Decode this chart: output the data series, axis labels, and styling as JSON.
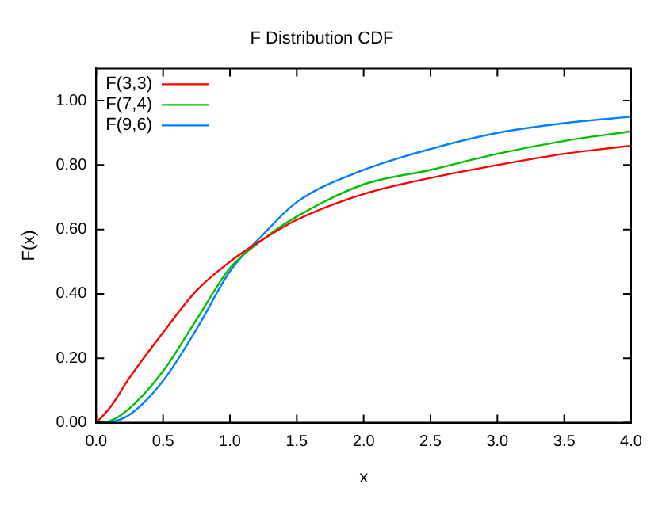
{
  "chart_data": {
    "type": "line",
    "title": "F Distribution CDF",
    "xlabel": "x",
    "ylabel": "F(x)",
    "x": [
      0,
      0.1,
      0.25,
      0.5,
      0.75,
      1,
      1.25,
      1.5,
      2,
      2.5,
      3,
      3.5,
      4
    ],
    "series": [
      {
        "name": "F(3,3)",
        "color": "#ff0000",
        "values": [
          0,
          0.045,
          0.14,
          0.28,
          0.41,
          0.5,
          0.57,
          0.63,
          0.71,
          0.76,
          0.8,
          0.835,
          0.86
        ]
      },
      {
        "name": "F(7,4)",
        "color": "#00c000",
        "values": [
          0,
          0.005,
          0.045,
          0.16,
          0.32,
          0.48,
          0.57,
          0.64,
          0.74,
          0.785,
          0.835,
          0.875,
          0.905
        ]
      },
      {
        "name": "F(9,6)",
        "color": "#0080ff",
        "values": [
          0,
          0.002,
          0.025,
          0.13,
          0.29,
          0.47,
          0.585,
          0.685,
          0.785,
          0.85,
          0.9,
          0.93,
          0.95
        ]
      }
    ],
    "xlim": [
      0,
      4
    ],
    "ylim": [
      0,
      1.1
    ],
    "xticks": [
      {
        "value": 0,
        "label": "0.0"
      },
      {
        "value": 0.5,
        "label": "0.5"
      },
      {
        "value": 1,
        "label": "1.0"
      },
      {
        "value": 1.5,
        "label": "1.5"
      },
      {
        "value": 2,
        "label": "2.0"
      },
      {
        "value": 2.5,
        "label": "2.5"
      },
      {
        "value": 3,
        "label": "3.0"
      },
      {
        "value": 3.5,
        "label": "3.5"
      },
      {
        "value": 4,
        "label": "4.0"
      }
    ],
    "yticks": [
      {
        "value": 0,
        "label": "0.00"
      },
      {
        "value": 0.2,
        "label": "0.20"
      },
      {
        "value": 0.4,
        "label": "0.40"
      },
      {
        "value": 0.6,
        "label": "0.60"
      },
      {
        "value": 0.8,
        "label": "0.80"
      },
      {
        "value": 1,
        "label": "1.00"
      }
    ],
    "legend": "top left",
    "grid": false,
    "marker": "none",
    "line_style": "solid"
  }
}
